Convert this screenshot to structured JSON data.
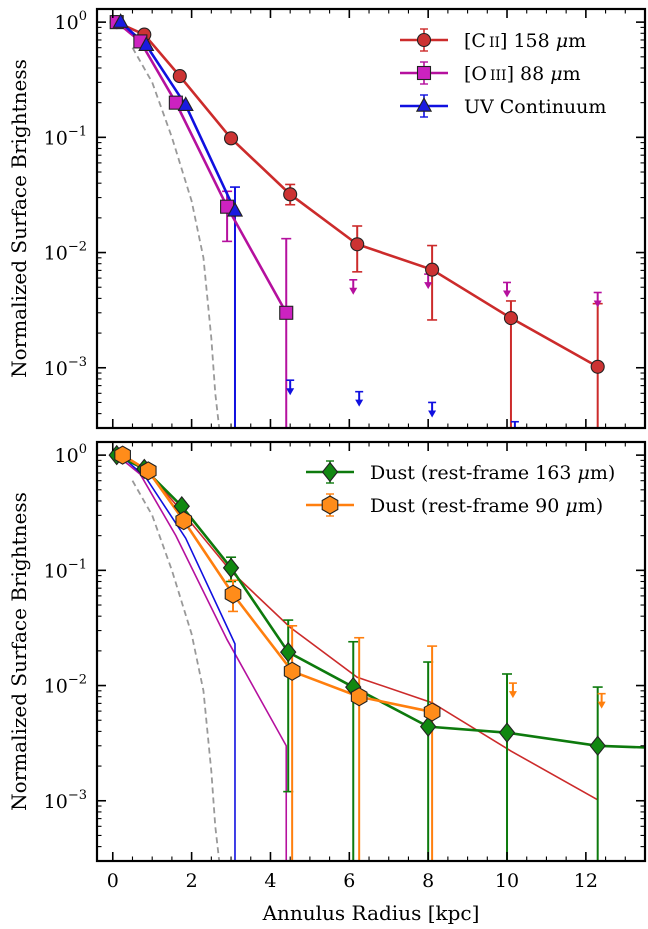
{
  "chart_data": [
    {
      "type": "line",
      "panel": "top",
      "yscale": "log",
      "ylim": [
        0.0003,
        1.3
      ],
      "xlim": [
        -0.4,
        13.5
      ],
      "grid": false,
      "ylabel": "Normalized Surface Brightness",
      "xlabel": "",
      "yticks": [
        {
          "value": 1,
          "base": "10",
          "exp": "0"
        },
        {
          "value": 0.1,
          "base": "10",
          "exp": "−1"
        },
        {
          "value": 0.01,
          "base": "10",
          "exp": "−2"
        },
        {
          "value": 0.001,
          "base": "10",
          "exp": "−3"
        }
      ],
      "xticks": [
        0,
        2,
        4,
        6,
        8,
        10,
        12
      ],
      "legend_position": "top-right",
      "series": [
        {
          "name": "[C II] 158 μm",
          "legend_parts": [
            "[C",
            "II",
            "] 158 ",
            "μ",
            "m"
          ],
          "color": "#cc2b2b",
          "fill": "#cc3333",
          "marker": "circle",
          "x": [
            0.1,
            0.8,
            1.7,
            3.0,
            4.5,
            6.2,
            8.1,
            10.1,
            12.3
          ],
          "y": [
            1.0,
            0.78,
            0.34,
            0.098,
            0.032,
            0.0118,
            0.0071,
            0.0027,
            0.00102
          ],
          "yerr_low": [
            1.0,
            0.78,
            0.34,
            0.098,
            0.026,
            0.0068,
            0.0026,
            0.0003,
            0.0003
          ],
          "yerr_high": [
            1.0,
            0.78,
            0.34,
            0.098,
            0.039,
            0.017,
            0.0115,
            0.0038,
            0.0036
          ]
        },
        {
          "name": "[O III] 88 μm",
          "legend_parts": [
            "[O",
            "III",
            "] 88 ",
            "μ",
            "m"
          ],
          "color": "#b5109e",
          "fill": "#cc22c0",
          "marker": "square",
          "x": [
            0.1,
            0.7,
            1.6,
            2.9,
            4.4
          ],
          "y": [
            1.0,
            0.68,
            0.2,
            0.025,
            0.003
          ],
          "yerr_low": [
            1.0,
            0.68,
            0.2,
            0.0125,
            0.0003
          ],
          "yerr_high": [
            1.0,
            0.68,
            0.2,
            0.034,
            0.0132
          ]
        },
        {
          "name": "UV Continuum",
          "legend_parts": [
            "UV Continuum"
          ],
          "color": "#1010e0",
          "fill": "#1a1ae0",
          "marker": "triangle",
          "x": [
            0.2,
            0.85,
            1.85,
            3.1
          ],
          "y": [
            1.0,
            0.63,
            0.19,
            0.023
          ],
          "yerr_low": [
            1.0,
            0.63,
            0.19,
            0.0003
          ],
          "yerr_high": [
            1.0,
            0.63,
            0.19,
            0.037
          ]
        }
      ],
      "upper_limits": [
        {
          "x": 6.1,
          "y": 0.0058,
          "color": "#b5109e"
        },
        {
          "x": 8.0,
          "y": 0.0065,
          "color": "#b5109e"
        },
        {
          "x": 10.0,
          "y": 0.0055,
          "color": "#b5109e"
        },
        {
          "x": 12.3,
          "y": 0.0045,
          "color": "#b5109e"
        },
        {
          "x": 4.5,
          "y": 0.00078,
          "color": "#1010e0"
        },
        {
          "x": 6.25,
          "y": 0.00062,
          "color": "#1010e0"
        },
        {
          "x": 8.1,
          "y": 0.0005,
          "color": "#1010e0"
        },
        {
          "x": 10.2,
          "y": 0.00034,
          "color": "#1010e0"
        }
      ],
      "psf": {
        "x": [
          0.5,
          1.0,
          1.5,
          2.0,
          2.3,
          2.5,
          2.6,
          2.7
        ],
        "y": [
          0.6,
          0.3,
          0.1,
          0.028,
          0.009,
          0.0018,
          0.0006,
          0.0003
        ],
        "color": "#999999"
      }
    },
    {
      "type": "line",
      "panel": "bottom",
      "yscale": "log",
      "ylim": [
        0.0003,
        1.3
      ],
      "xlim": [
        -0.4,
        13.5
      ],
      "grid": false,
      "ylabel": "Normalized Surface Brightness",
      "xlabel": "Annulus Radius [kpc]",
      "yticks": [
        {
          "value": 1,
          "base": "10",
          "exp": "0"
        },
        {
          "value": 0.1,
          "base": "10",
          "exp": "−1"
        },
        {
          "value": 0.01,
          "base": "10",
          "exp": "−2"
        },
        {
          "value": 0.001,
          "base": "10",
          "exp": "−3"
        }
      ],
      "xticks": [
        0,
        2,
        4,
        6,
        8,
        10,
        12
      ],
      "legend_position": "top-right",
      "series": [
        {
          "name": "Dust (rest-frame 163 μm)",
          "legend_parts": [
            "Dust (rest-frame 163 ",
            "μ",
            "m)"
          ],
          "color": "#0d7a0d",
          "fill": "#118811",
          "marker": "diamond",
          "x": [
            0.1,
            0.8,
            1.75,
            3.0,
            4.45,
            6.1,
            8.0,
            10.0,
            12.3,
            13.5
          ],
          "y": [
            1.0,
            0.76,
            0.36,
            0.105,
            0.0195,
            0.0097,
            0.0044,
            0.0039,
            0.003,
            0.0029
          ],
          "yerr_low": [
            1.0,
            0.76,
            0.36,
            0.08,
            0.0012,
            0.0003,
            0.0003,
            0.0003,
            0.0003,
            null
          ],
          "yerr_high": [
            1.0,
            0.76,
            0.36,
            0.13,
            0.037,
            0.024,
            0.016,
            0.0126,
            0.0097,
            null
          ]
        },
        {
          "name": "Dust (rest-frame 90 μm)",
          "legend_parts": [
            "Dust (rest-frame 90 ",
            "μ",
            "m)"
          ],
          "color": "#ff7f0e",
          "fill": "#ff8c1a",
          "marker": "hexagon",
          "x": [
            0.25,
            0.9,
            1.8,
            3.05,
            4.55,
            6.25,
            8.1
          ],
          "y": [
            1.0,
            0.73,
            0.27,
            0.062,
            0.0133,
            0.008,
            0.0059
          ],
          "yerr_low": [
            1.0,
            0.73,
            0.27,
            0.044,
            0.0003,
            0.0003,
            0.0003
          ],
          "yerr_high": [
            1.0,
            0.73,
            0.27,
            0.082,
            0.033,
            0.026,
            0.022
          ]
        }
      ],
      "upper_limits": [
        {
          "x": 10.15,
          "y": 0.0105,
          "color": "#ff7f0e"
        },
        {
          "x": 12.4,
          "y": 0.0085,
          "color": "#ff7f0e"
        }
      ],
      "reference_lines": [
        {
          "x": [
            0.1,
            0.8,
            1.7,
            3.0,
            4.5,
            6.2,
            8.1,
            10.1,
            12.3
          ],
          "y": [
            1.0,
            0.78,
            0.34,
            0.098,
            0.032,
            0.0118,
            0.0071,
            0.0027,
            0.00102
          ],
          "color": "#cc2b2b"
        },
        {
          "x": [
            0.1,
            0.7,
            1.6,
            2.9,
            4.4
          ],
          "y": [
            1.0,
            0.68,
            0.2,
            0.025,
            0.003
          ],
          "color": "#b5109e",
          "drop_to_bottom": true
        },
        {
          "x": [
            0.2,
            0.85,
            1.85,
            3.1
          ],
          "y": [
            1.0,
            0.63,
            0.19,
            0.023
          ],
          "color": "#1010e0",
          "drop_to_bottom": true
        }
      ],
      "psf": {
        "x": [
          0.5,
          1.0,
          1.5,
          2.0,
          2.3,
          2.5,
          2.6,
          2.7
        ],
        "y": [
          0.6,
          0.3,
          0.1,
          0.028,
          0.009,
          0.0018,
          0.0006,
          0.0003
        ],
        "color": "#999999"
      }
    }
  ]
}
